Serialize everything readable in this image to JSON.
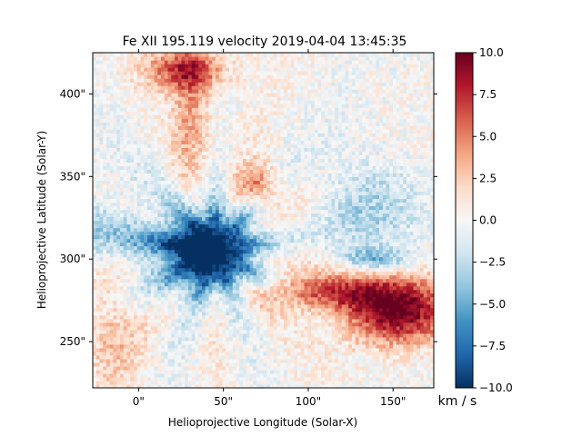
{
  "chart_data": {
    "type": "heatmap",
    "title": "Fe XII 195.119 velocity 2019-04-04 13:45:35",
    "xlabel": "Helioprojective Longitude (Solar-X)",
    "ylabel": "Helioprojective Latitude (Solar-Y)",
    "x_unit": "arcsec",
    "y_unit": "arcsec",
    "xlim": [
      -27,
      174
    ],
    "ylim": [
      222,
      425
    ],
    "x_ticks": [
      0,
      50,
      100,
      150
    ],
    "x_tick_labels": [
      "0\"",
      "50\"",
      "100\"",
      "150\""
    ],
    "y_ticks": [
      250,
      300,
      350,
      400
    ],
    "y_tick_labels": [
      "250\"",
      "300\"",
      "350\"",
      "400\""
    ],
    "grid": false,
    "colormap": "RdBu_r",
    "colors": {
      "low": "#053061",
      "mid": "#f7f7f7",
      "high": "#67001f"
    },
    "colorbar": {
      "label": "km / s",
      "range": [
        -10,
        10
      ],
      "ticks": [
        -10,
        -7.5,
        -5,
        -2.5,
        0,
        2.5,
        5,
        7.5,
        10
      ],
      "tick_labels": [
        "−10.0",
        "−7.5",
        "−5.0",
        "−2.5",
        "0.0",
        "2.5",
        "5.0",
        "7.5",
        "10.0"
      ]
    },
    "features": [
      {
        "kind": "strong blueshift core",
        "x": 45,
        "y": 305,
        "value": -10
      },
      {
        "kind": "blueshift fan to the east",
        "x": 0,
        "y": 310,
        "value": -6
      },
      {
        "kind": "redshift region",
        "x": 150,
        "y": 270,
        "value": 9
      },
      {
        "kind": "redshift region",
        "x": 30,
        "y": 415,
        "value": 7
      },
      {
        "kind": "redshift arc",
        "x": 70,
        "y": 345,
        "value": 5
      }
    ]
  }
}
